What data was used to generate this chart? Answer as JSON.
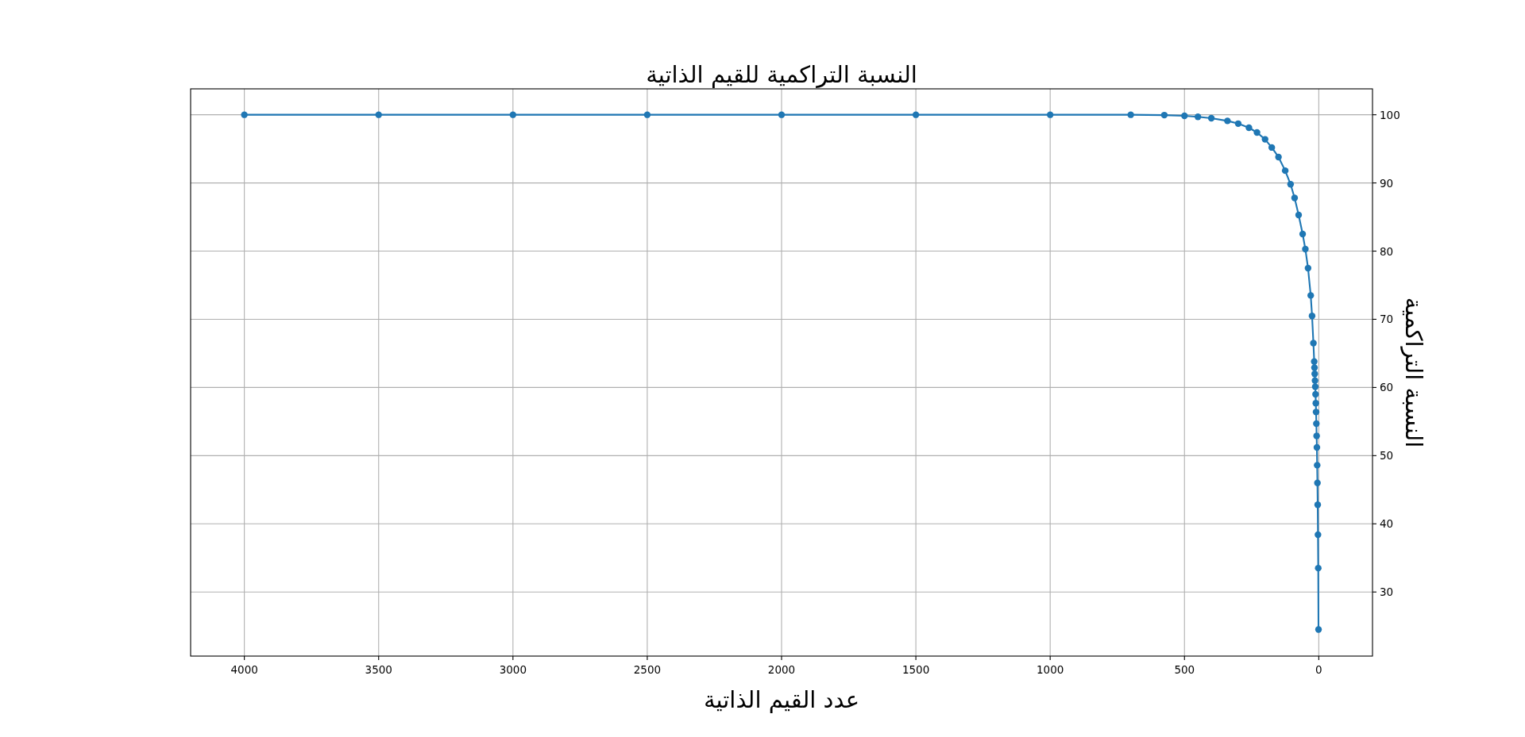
{
  "chart_data": {
    "type": "line",
    "title": "النسبة التراكمية للقيم الذاتية",
    "xlabel": "عدد القيم الذاتية",
    "ylabel": "النسبة التراكمية",
    "x": [
      1,
      2,
      3,
      4,
      5,
      6,
      7,
      8,
      9,
      10,
      11,
      12,
      13,
      14,
      15,
      16,
      17,
      20,
      25,
      30,
      40,
      50,
      60,
      75,
      90,
      105,
      125,
      150,
      175,
      200,
      230,
      260,
      300,
      340,
      400,
      450,
      500,
      575,
      700,
      1000,
      1500,
      2000,
      2500,
      3000,
      3500,
      4000
    ],
    "series": [
      {
        "color": "#1f77b4",
        "values": [
          24.5,
          33.5,
          38.4,
          42.8,
          46.0,
          48.6,
          51.2,
          52.9,
          54.7,
          56.4,
          57.7,
          59.0,
          60.1,
          61.0,
          62.0,
          62.9,
          63.8,
          66.5,
          70.5,
          73.5,
          77.5,
          80.3,
          82.5,
          85.3,
          87.8,
          89.8,
          91.8,
          93.8,
          95.2,
          96.4,
          97.4,
          98.1,
          98.7,
          99.1,
          99.5,
          99.7,
          99.85,
          99.95,
          100,
          100,
          100,
          100,
          100,
          100,
          100,
          100
        ]
      }
    ],
    "xlim": [
      4200,
      -200
    ],
    "xticks": [
      0,
      500,
      1000,
      1500,
      2000,
      2500,
      3000,
      3500,
      4000
    ],
    "ylim": [
      20.6,
      103.8
    ],
    "yticks": [
      30,
      40,
      50,
      60,
      70,
      80,
      90,
      100
    ],
    "grid": true,
    "marker": "circle",
    "line_style": "solid"
  }
}
